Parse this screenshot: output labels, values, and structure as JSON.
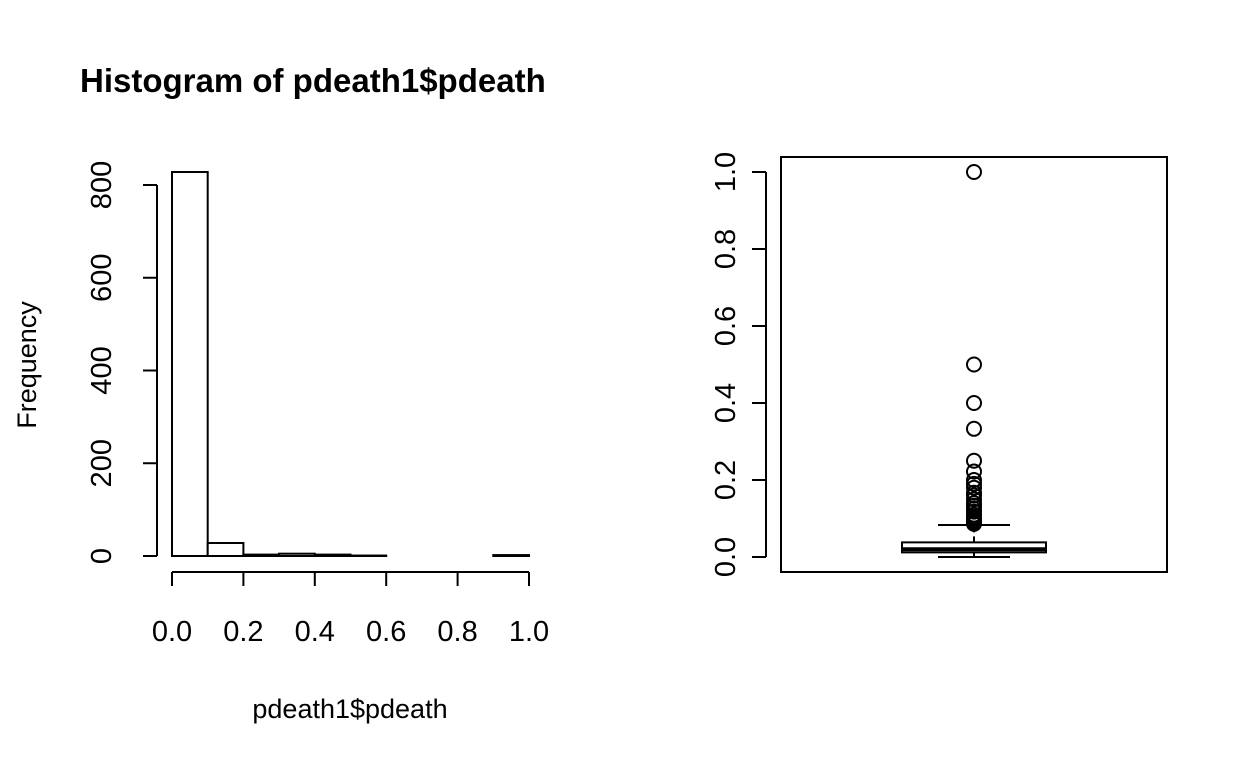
{
  "chart_data": [
    {
      "type": "histogram",
      "title": "Histogram of pdeath1$pdeath",
      "xlabel": "pdeath1$pdeath",
      "ylabel": "Frequency",
      "xlim": [
        0,
        1
      ],
      "ylim": [
        0,
        800
      ],
      "x_ticks": [
        "0.0",
        "0.2",
        "0.4",
        "0.6",
        "0.8",
        "1.0"
      ],
      "y_ticks": [
        "0",
        "200",
        "400",
        "600",
        "800"
      ],
      "bins": [
        {
          "from": 0.0,
          "to": 0.1,
          "count": 828
        },
        {
          "from": 0.1,
          "to": 0.2,
          "count": 28
        },
        {
          "from": 0.2,
          "to": 0.3,
          "count": 3
        },
        {
          "from": 0.3,
          "to": 0.4,
          "count": 5
        },
        {
          "from": 0.4,
          "to": 0.5,
          "count": 3
        },
        {
          "from": 0.5,
          "to": 0.6,
          "count": 1
        },
        {
          "from": 0.6,
          "to": 0.7,
          "count": 0
        },
        {
          "from": 0.7,
          "to": 0.8,
          "count": 0
        },
        {
          "from": 0.8,
          "to": 0.9,
          "count": 0
        },
        {
          "from": 0.9,
          "to": 1.0,
          "count": 2
        }
      ],
      "grid": false
    },
    {
      "type": "box",
      "ylim": [
        0,
        1
      ],
      "y_ticks": [
        "0.0",
        "0.2",
        "0.4",
        "0.6",
        "0.8",
        "1.0"
      ],
      "whisker_low": 0.0,
      "q1": 0.012,
      "median": 0.02,
      "q3": 0.038,
      "whisker_high": 0.083,
      "outliers": [
        0.086,
        0.089,
        0.092,
        0.095,
        0.1,
        0.105,
        0.11,
        0.118,
        0.125,
        0.133,
        0.14,
        0.15,
        0.16,
        0.167,
        0.18,
        0.19,
        0.2,
        0.222,
        0.25,
        0.333,
        0.4,
        0.5,
        1.0
      ],
      "grid": false
    }
  ]
}
